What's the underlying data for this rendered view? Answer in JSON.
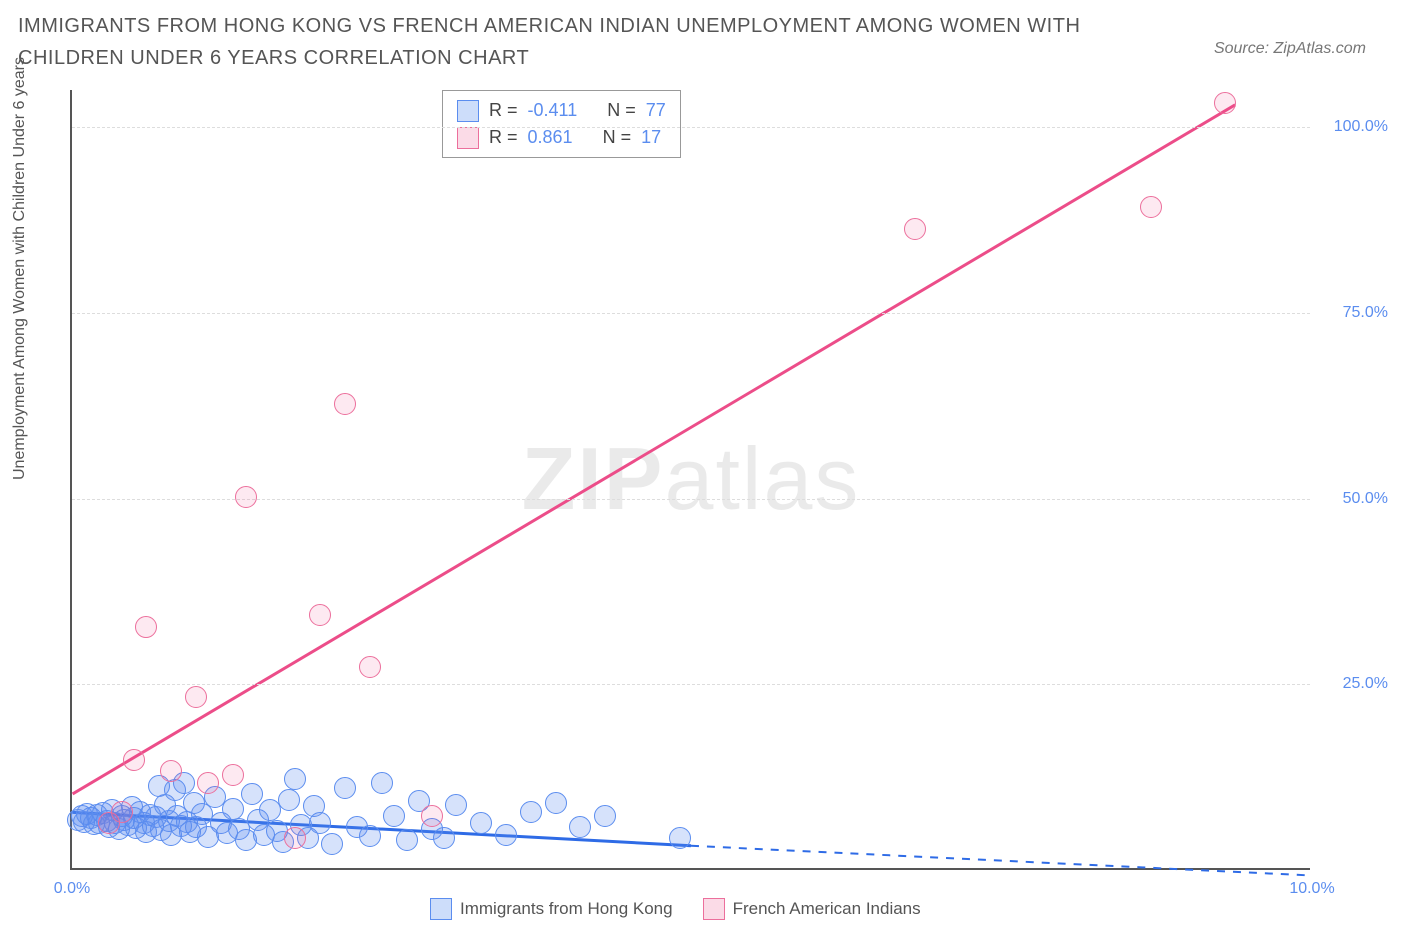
{
  "title": "IMMIGRANTS FROM HONG KONG VS FRENCH AMERICAN INDIAN UNEMPLOYMENT AMONG WOMEN WITH CHILDREN UNDER 6 YEARS CORRELATION CHART",
  "source": "Source: ZipAtlas.com",
  "ylabel": "Unemployment Among Women with Children Under 6 years",
  "watermark_bold": "ZIP",
  "watermark_light": "atlas",
  "chart": {
    "type": "scatter",
    "xlim": [
      0,
      10
    ],
    "ylim": [
      0,
      105
    ],
    "xtick_labels": [
      "0.0%",
      "10.0%"
    ],
    "xtick_positions": [
      0,
      10
    ],
    "ytick_labels": [
      "25.0%",
      "50.0%",
      "75.0%",
      "100.0%"
    ],
    "ytick_positions": [
      25,
      50,
      75,
      100
    ],
    "grid_color": "#dddddd",
    "axis_color": "#555555",
    "background_color": "#ffffff",
    "label_color": "#5b8def",
    "marker_size": 22,
    "series": [
      {
        "name": "Immigrants from Hong Kong",
        "color_fill": "rgba(91,141,239,0.25)",
        "color_border": "#5b8def",
        "R": "-0.411",
        "N": "77",
        "trend": {
          "x1": 0,
          "y1": 7.5,
          "x2": 5.0,
          "y2": 3.0,
          "color": "#2e6be6",
          "width": 3,
          "dash_x2": 10.0,
          "dash_y2": -1.0
        },
        "points": [
          [
            0.05,
            6.5
          ],
          [
            0.08,
            7.0
          ],
          [
            0.1,
            6.2
          ],
          [
            0.12,
            7.3
          ],
          [
            0.15,
            6.8
          ],
          [
            0.18,
            5.9
          ],
          [
            0.2,
            7.1
          ],
          [
            0.22,
            6.0
          ],
          [
            0.25,
            7.4
          ],
          [
            0.28,
            6.3
          ],
          [
            0.3,
            5.5
          ],
          [
            0.32,
            7.8
          ],
          [
            0.35,
            6.1
          ],
          [
            0.38,
            5.2
          ],
          [
            0.4,
            7.0
          ],
          [
            0.42,
            6.4
          ],
          [
            0.45,
            5.8
          ],
          [
            0.48,
            8.2
          ],
          [
            0.5,
            6.7
          ],
          [
            0.52,
            5.4
          ],
          [
            0.55,
            7.5
          ],
          [
            0.58,
            6.0
          ],
          [
            0.6,
            4.8
          ],
          [
            0.63,
            7.2
          ],
          [
            0.65,
            5.6
          ],
          [
            0.68,
            6.9
          ],
          [
            0.7,
            11.0
          ],
          [
            0.72,
            5.1
          ],
          [
            0.75,
            8.5
          ],
          [
            0.78,
            6.3
          ],
          [
            0.8,
            4.5
          ],
          [
            0.83,
            10.5
          ],
          [
            0.85,
            7.0
          ],
          [
            0.88,
            5.7
          ],
          [
            0.9,
            11.5
          ],
          [
            0.93,
            6.2
          ],
          [
            0.95,
            4.9
          ],
          [
            0.98,
            8.8
          ],
          [
            1.0,
            5.5
          ],
          [
            1.05,
            7.3
          ],
          [
            1.1,
            4.2
          ],
          [
            1.15,
            9.5
          ],
          [
            1.2,
            6.0
          ],
          [
            1.25,
            4.7
          ],
          [
            1.3,
            8.0
          ],
          [
            1.35,
            5.3
          ],
          [
            1.4,
            3.8
          ],
          [
            1.45,
            10.0
          ],
          [
            1.5,
            6.5
          ],
          [
            1.55,
            4.4
          ],
          [
            1.6,
            7.8
          ],
          [
            1.65,
            5.0
          ],
          [
            1.7,
            3.5
          ],
          [
            1.75,
            9.2
          ],
          [
            1.8,
            12.0
          ],
          [
            1.85,
            5.8
          ],
          [
            1.9,
            4.0
          ],
          [
            1.95,
            8.3
          ],
          [
            2.0,
            6.0
          ],
          [
            2.1,
            3.2
          ],
          [
            2.2,
            10.8
          ],
          [
            2.3,
            5.5
          ],
          [
            2.4,
            4.3
          ],
          [
            2.5,
            11.5
          ],
          [
            2.6,
            7.0
          ],
          [
            2.7,
            3.8
          ],
          [
            2.8,
            9.0
          ],
          [
            2.9,
            5.2
          ],
          [
            3.0,
            4.0
          ],
          [
            3.1,
            8.5
          ],
          [
            3.3,
            6.0
          ],
          [
            3.5,
            4.5
          ],
          [
            3.7,
            7.5
          ],
          [
            3.9,
            8.8
          ],
          [
            4.1,
            5.5
          ],
          [
            4.3,
            7.0
          ],
          [
            4.9,
            4.0
          ]
        ]
      },
      {
        "name": "French American Indians",
        "color_fill": "rgba(236,77,137,0.12)",
        "color_border": "#ec6f9c",
        "R": "0.861",
        "N": "17",
        "trend": {
          "x1": 0,
          "y1": 10.0,
          "x2": 9.4,
          "y2": 103.0,
          "color": "#ec4d89",
          "width": 3
        },
        "points": [
          [
            0.3,
            6.0
          ],
          [
            0.4,
            7.5
          ],
          [
            0.5,
            14.5
          ],
          [
            0.6,
            32.5
          ],
          [
            0.8,
            13.0
          ],
          [
            1.0,
            23.0
          ],
          [
            1.1,
            11.5
          ],
          [
            1.3,
            12.5
          ],
          [
            1.4,
            50.0
          ],
          [
            1.8,
            4.0
          ],
          [
            2.0,
            34.0
          ],
          [
            2.2,
            62.5
          ],
          [
            2.4,
            27.0
          ],
          [
            2.9,
            7.0
          ],
          [
            6.8,
            86.0
          ],
          [
            8.7,
            89.0
          ],
          [
            9.3,
            103.0
          ]
        ]
      }
    ]
  },
  "stats_box": {
    "rows": [
      {
        "swatch": "blue",
        "r_label": "R =",
        "r_val": "-0.411",
        "n_label": "N =",
        "n_val": "77"
      },
      {
        "swatch": "pink",
        "r_label": "R =",
        "r_val": " 0.861",
        "n_label": "N =",
        "n_val": "17"
      }
    ]
  },
  "legend": {
    "items": [
      {
        "swatch": "blue",
        "label": "Immigrants from Hong Kong"
      },
      {
        "swatch": "pink",
        "label": "French American Indians"
      }
    ]
  }
}
